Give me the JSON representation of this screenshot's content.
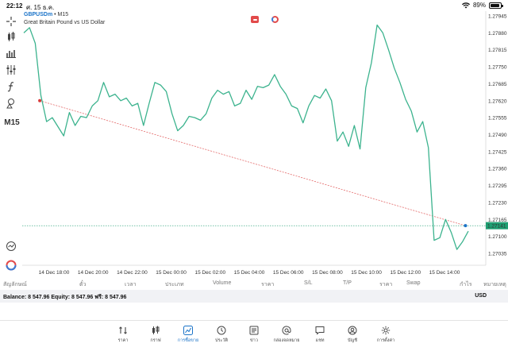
{
  "status_bar": {
    "time": "22:12",
    "date": "ศ. 15 ธ.ค.",
    "battery": "89%",
    "battery_level": 0.89
  },
  "chart": {
    "symbol": "GBPUSDm",
    "separator": "•",
    "timeframe": "M15",
    "description": "Great Britain Pound vs US Dollar",
    "toolbar_timeframe": "M15",
    "price_line_color": "#3cb38e",
    "trendline_color": "#e05555",
    "current_price_color": "#1f9e72"
  },
  "chart_data": {
    "type": "line",
    "price_axis": [
      "1.27945",
      "1.27880",
      "1.27815",
      "1.27750",
      "1.27685",
      "1.27620",
      "1.27555",
      "1.27490",
      "1.27425",
      "1.27360",
      "1.27295",
      "1.27230",
      "1.27165",
      "1.27100",
      "1.27035"
    ],
    "current_price": "1.27141",
    "time_axis": [
      "14 Dec 18:00",
      "14 Dec 20:00",
      "14 Dec 22:00",
      "15 Dec 00:00",
      "15 Dec 02:00",
      "15 Dec 04:00",
      "15 Dec 06:00",
      "15 Dec 08:00",
      "15 Dec 10:00",
      "15 Dec 12:00",
      "15 Dec 14:00"
    ],
    "y_range": [
      1.27035,
      1.27945
    ],
    "close_values": [
      1.2788,
      1.279,
      1.2784,
      1.2764,
      1.2754,
      1.27555,
      1.2752,
      1.27485,
      1.27575,
      1.27525,
      1.2756,
      1.27555,
      1.276,
      1.2762,
      1.2769,
      1.27635,
      1.27645,
      1.2762,
      1.2763,
      1.276,
      1.2761,
      1.27525,
      1.2761,
      1.2769,
      1.2768,
      1.27655,
      1.2757,
      1.27505,
      1.27525,
      1.2756,
      1.27555,
      1.27545,
      1.2757,
      1.2763,
      1.2766,
      1.27645,
      1.27655,
      1.276,
      1.2761,
      1.2766,
      1.27625,
      1.27675,
      1.2767,
      1.2768,
      1.2772,
      1.27675,
      1.27645,
      1.276,
      1.2759,
      1.27535,
      1.276,
      1.2764,
      1.2763,
      1.27665,
      1.2762,
      1.27465,
      1.275,
      1.27445,
      1.27525,
      1.27435,
      1.2767,
      1.27765,
      1.2791,
      1.2788,
      1.27815,
      1.27745,
      1.2769,
      1.27625,
      1.2758,
      1.275,
      1.2754,
      1.2744,
      1.27085,
      1.27095,
      1.27165,
      1.27115,
      1.2705,
      1.2708,
      1.2712
    ],
    "trendline": {
      "from": {
        "index": 2.8,
        "price": 1.2762
      },
      "to": {
        "index": 77.5,
        "price": 1.27141
      }
    }
  },
  "toolbar": [
    "crosshair-icon",
    "chart-type-icon",
    "bar-chart-icon",
    "indicators-icon",
    "function-icon",
    "objects-icon"
  ],
  "table_headers": [
    "สัญลักษณ์",
    "ตั๋ว",
    "เวลา",
    "ประเภท",
    "Volume",
    "ราคา",
    "S/L",
    "T/P",
    "ราคา",
    "Swap",
    "กำไร",
    "หมายเหตุ"
  ],
  "balance": {
    "text": "Balance: 8 547.96 Equity: 8 547.96 ฟรี: 8 547.96",
    "currency": "USD"
  },
  "nav": [
    {
      "label": "ราคา",
      "icon": "quotes-icon",
      "active": false
    },
    {
      "label": "กราฟ",
      "icon": "candles-icon",
      "active": false
    },
    {
      "label": "การซื้อขาย",
      "icon": "trade-icon",
      "active": true
    },
    {
      "label": "ประวัติ",
      "icon": "history-icon",
      "active": false
    },
    {
      "label": "ข่าว",
      "icon": "news-icon",
      "active": false
    },
    {
      "label": "กล่องจดหมาย",
      "icon": "mail-icon",
      "active": false
    },
    {
      "label": "แชท",
      "icon": "chat-icon",
      "active": false
    },
    {
      "label": "บัญชี",
      "icon": "account-icon",
      "active": false
    },
    {
      "label": "การตั้งค่า",
      "icon": "settings-icon",
      "active": false
    }
  ]
}
